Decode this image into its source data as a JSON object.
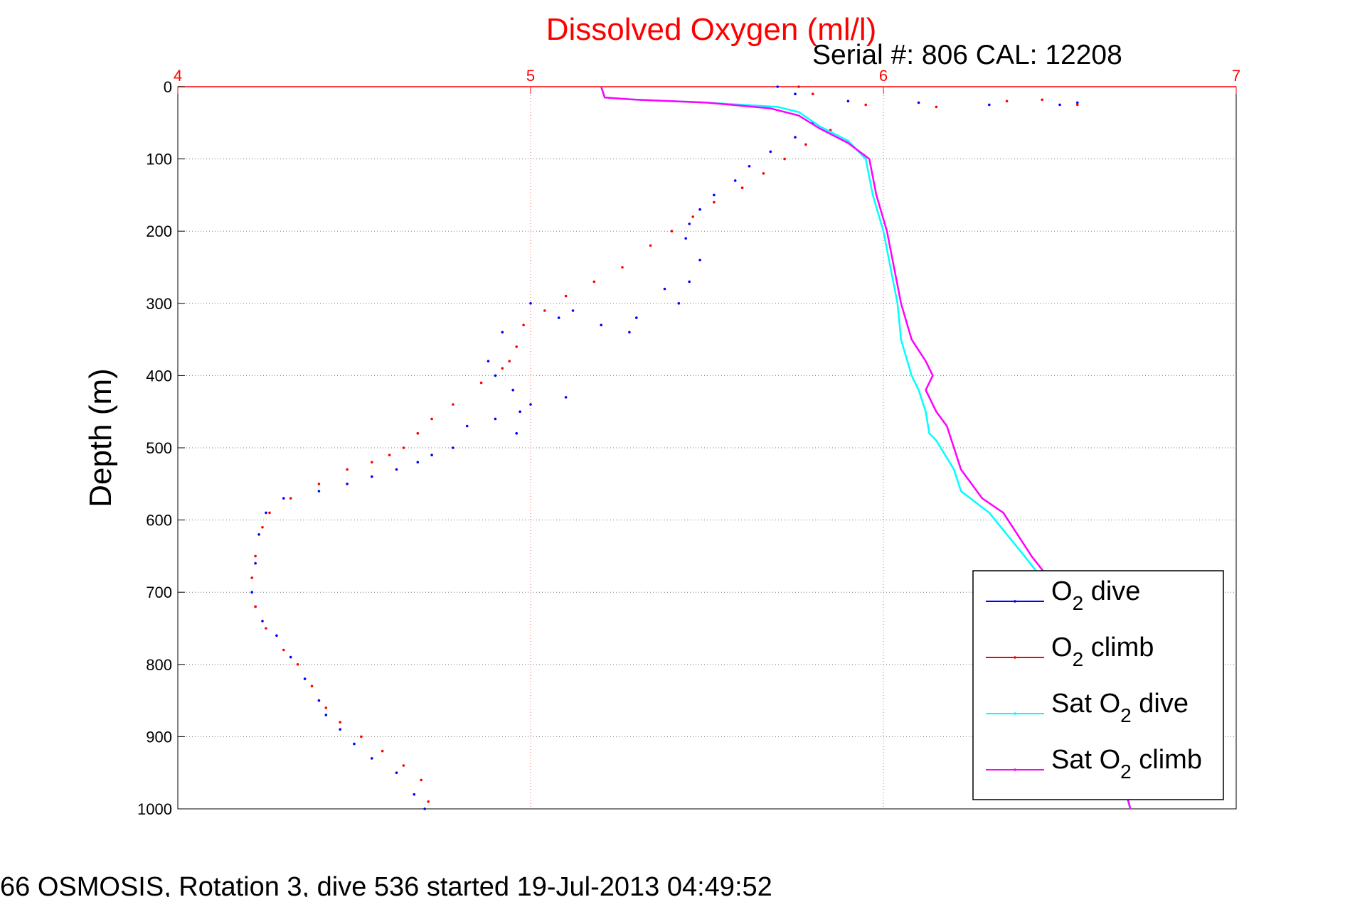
{
  "chart_data": {
    "type": "scatter",
    "title": "Dissolved Oxygen (ml/l)",
    "subtitle": "Serial #: 806  CAL: 12208",
    "xlabel": "",
    "ylabel": "Depth (m)",
    "xlim": [
      4,
      7
    ],
    "ylim": [
      0,
      1000
    ],
    "y_reversed": true,
    "x_axis_position": "top",
    "x_ticks": [
      4,
      5,
      6,
      7
    ],
    "y_ticks": [
      0,
      100,
      200,
      300,
      400,
      500,
      600,
      700,
      800,
      900,
      1000
    ],
    "grid": true,
    "legend_position": "bottom-right",
    "footer": "66 OSMOSIS, Rotation 3, dive 536 started 19-Jul-2013 04:49:52",
    "series": [
      {
        "name": "O2 dive",
        "legend_main": "O",
        "legend_sub": "2",
        "legend_rest": " dive",
        "color": "#0000ff",
        "style": "dots",
        "x": [
          5.7,
          5.75,
          5.9,
          6.1,
          6.3,
          6.5,
          6.55,
          5.8,
          5.75,
          5.68,
          5.62,
          5.58,
          5.52,
          5.48,
          5.45,
          5.44,
          5.48,
          5.45,
          5.38,
          5.42,
          5.3,
          5.28,
          5.2,
          5.12,
          5.08,
          5.0,
          4.92,
          4.88,
          4.9,
          4.95,
          4.97,
          4.96,
          5.0,
          5.1,
          4.9,
          4.82,
          4.78,
          4.72,
          4.68,
          4.62,
          4.55,
          4.48,
          4.4,
          4.3,
          4.25,
          4.23,
          4.22,
          4.21,
          4.22,
          4.24,
          4.28,
          4.32,
          4.36,
          4.4,
          4.42,
          4.46,
          4.5,
          4.55,
          4.62,
          4.67,
          4.7
        ],
        "y": [
          0,
          10,
          20,
          22,
          25,
          25,
          22,
          50,
          70,
          90,
          110,
          130,
          150,
          170,
          190,
          210,
          240,
          270,
          280,
          300,
          320,
          340,
          330,
          310,
          320,
          300,
          340,
          380,
          400,
          420,
          450,
          480,
          440,
          430,
          460,
          470,
          500,
          510,
          520,
          530,
          540,
          550,
          560,
          570,
          590,
          620,
          660,
          700,
          720,
          740,
          760,
          790,
          820,
          850,
          870,
          890,
          910,
          930,
          950,
          980,
          1000
        ]
      },
      {
        "name": "O2 climb",
        "legend_main": "O",
        "legend_sub": "2",
        "legend_rest": " climb",
        "color": "#ff0000",
        "style": "dots",
        "x": [
          5.76,
          5.8,
          5.95,
          6.15,
          6.35,
          6.45,
          6.55,
          5.85,
          5.78,
          5.72,
          5.66,
          5.6,
          5.52,
          5.46,
          5.4,
          5.34,
          5.26,
          5.18,
          5.1,
          5.04,
          4.98,
          4.96,
          4.94,
          4.92,
          4.86,
          4.78,
          4.72,
          4.68,
          4.64,
          4.6,
          4.55,
          4.48,
          4.4,
          4.32,
          4.26,
          4.24,
          4.22,
          4.21,
          4.22,
          4.25,
          4.3,
          4.34,
          4.38,
          4.42,
          4.46,
          4.52,
          4.58,
          4.64,
          4.69,
          4.71
        ],
        "y": [
          0,
          10,
          25,
          28,
          20,
          18,
          25,
          60,
          80,
          100,
          120,
          140,
          160,
          180,
          200,
          220,
          250,
          270,
          290,
          310,
          330,
          360,
          380,
          390,
          410,
          440,
          460,
          480,
          500,
          510,
          520,
          530,
          550,
          570,
          590,
          610,
          650,
          680,
          720,
          750,
          780,
          800,
          830,
          860,
          880,
          900,
          920,
          940,
          960,
          990
        ]
      },
      {
        "name": "Sat O2 dive",
        "legend_main": "Sat O",
        "legend_sub": "2",
        "legend_rest": " dive",
        "color": "#00ffff",
        "style": "line",
        "x": [
          5.2,
          5.21,
          5.3,
          5.5,
          5.7,
          5.76,
          5.82,
          5.9,
          5.95,
          5.97,
          6.0,
          6.02,
          6.04,
          6.05,
          6.08,
          6.1,
          6.12,
          6.13,
          6.15,
          6.2,
          6.22,
          6.3,
          6.35,
          6.4,
          6.48,
          6.55,
          6.6,
          6.62,
          6.65,
          6.7
        ],
        "y": [
          0,
          15,
          18,
          22,
          28,
          35,
          55,
          75,
          100,
          150,
          200,
          250,
          300,
          350,
          400,
          420,
          450,
          480,
          490,
          530,
          560,
          590,
          620,
          650,
          700,
          750,
          800,
          850,
          920,
          1000
        ]
      },
      {
        "name": "Sat O2 climb",
        "legend_main": "Sat O",
        "legend_sub": "2",
        "legend_rest": " climb",
        "color": "#ff00ff",
        "style": "line",
        "x": [
          5.2,
          5.21,
          5.3,
          5.5,
          5.68,
          5.76,
          5.82,
          5.9,
          5.96,
          5.98,
          6.01,
          6.03,
          6.05,
          6.08,
          6.12,
          6.14,
          6.12,
          6.15,
          6.18,
          6.22,
          6.28,
          6.34,
          6.38,
          6.42,
          6.5,
          6.56,
          6.6,
          6.63,
          6.66,
          6.7
        ],
        "y": [
          0,
          15,
          18,
          22,
          30,
          40,
          58,
          78,
          100,
          150,
          200,
          250,
          300,
          350,
          380,
          400,
          420,
          450,
          470,
          530,
          570,
          590,
          620,
          650,
          700,
          750,
          800,
          850,
          920,
          1000
        ]
      }
    ]
  }
}
